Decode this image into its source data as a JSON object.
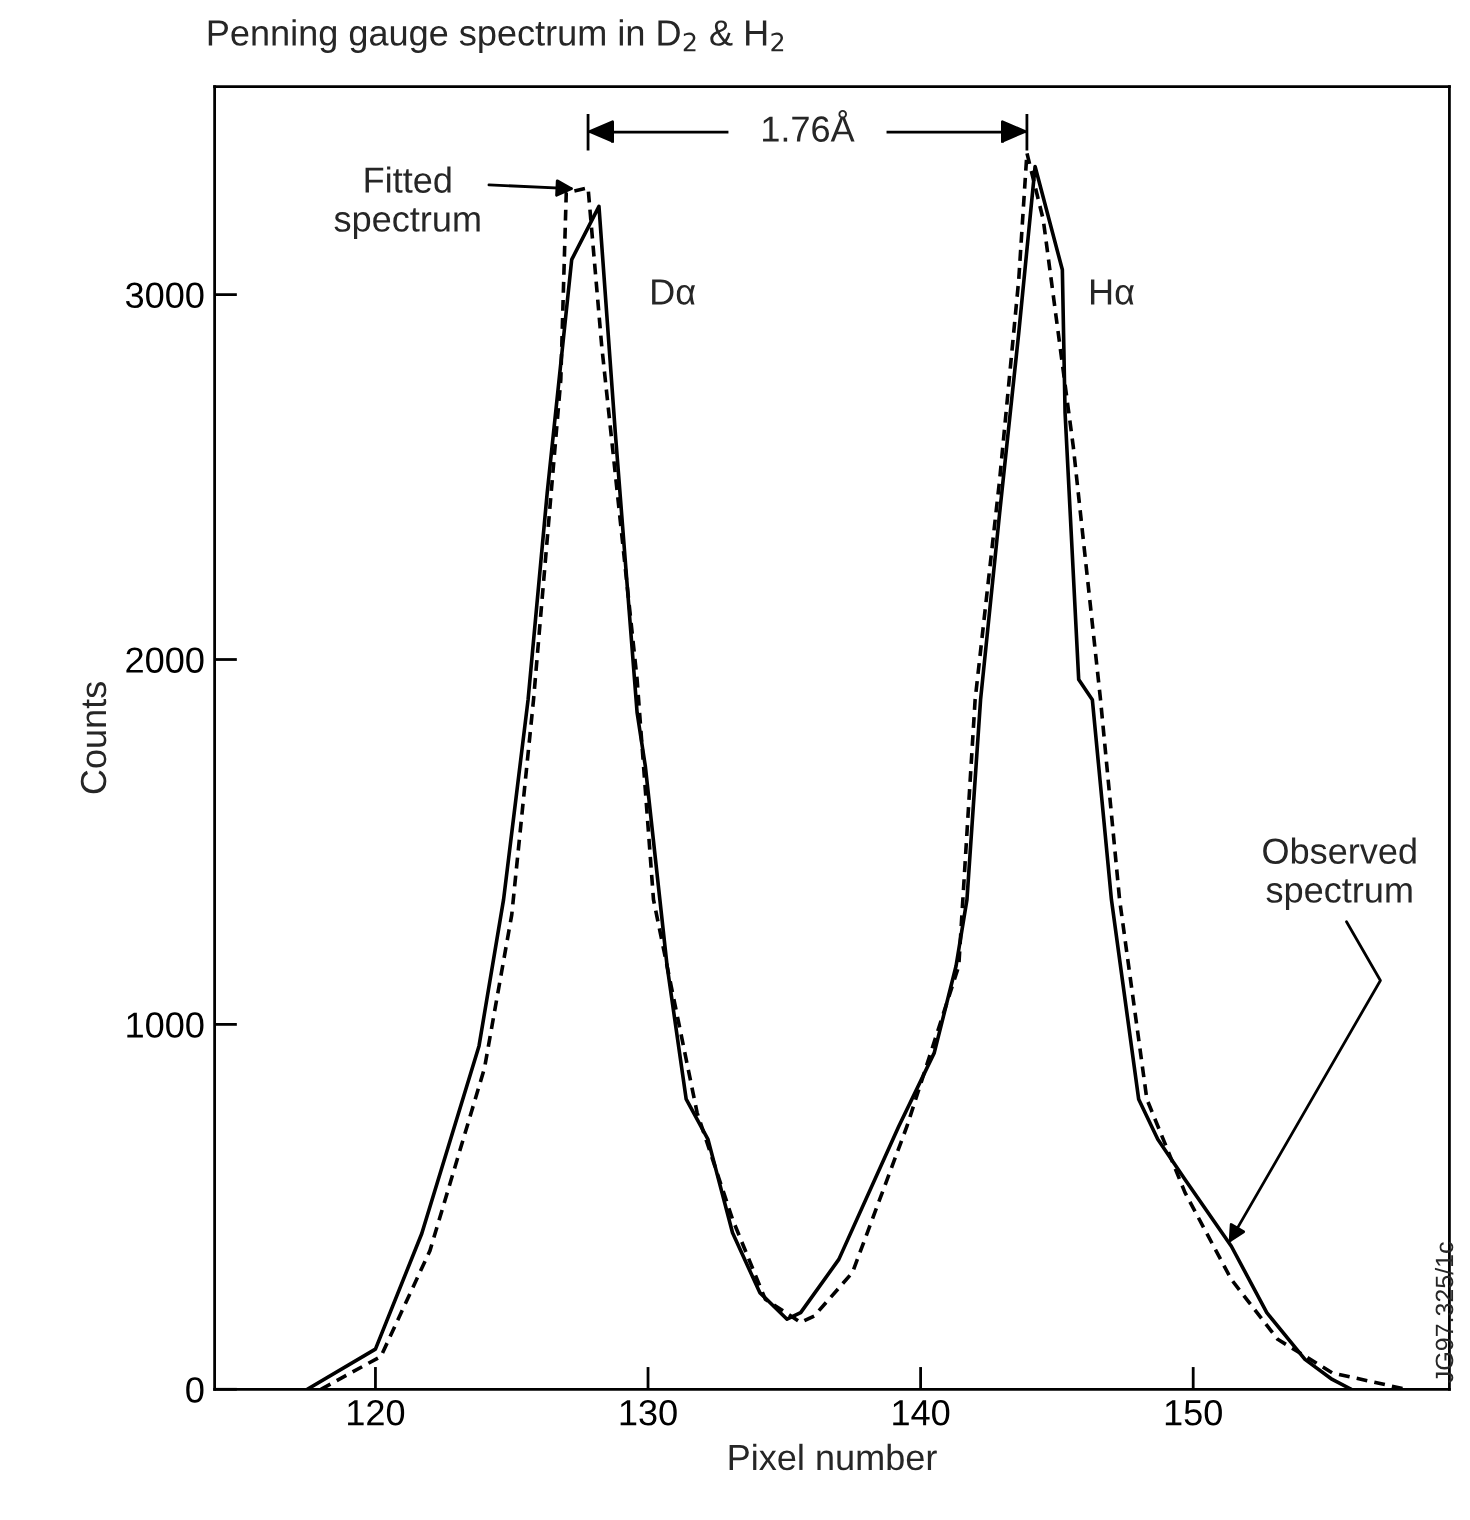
{
  "chart_data": {
    "type": "line",
    "title": "Penning gauge spectrum in D$_{2}$ & H$_{2}$",
    "xlabel": "Pixel number",
    "ylabel": "Counts",
    "xlim": [
      114.1,
      159.4
    ],
    "ylim": [
      0,
      3570
    ],
    "xticks": [
      120,
      130,
      140,
      150
    ],
    "yticks": [
      0,
      1000,
      2000,
      3000
    ],
    "grid": false,
    "series": [
      {
        "color": "#000000",
        "line_style": "solid",
        "x": [
          117.5,
          120.0,
          121.7,
          123.8,
          124.7,
          125.6,
          126.3,
          127.2,
          128.2,
          128.8,
          129.6,
          129.9,
          130.7,
          131.4,
          132.2,
          133.1,
          134.1,
          135.1,
          135.6,
          137.0,
          139.2,
          140.5,
          141.3,
          141.7,
          142.2,
          142.9,
          143.6,
          144.2,
          145.2,
          145.3,
          145.8,
          146.3,
          147.0,
          148.0,
          148.7,
          149.7,
          151.4,
          152.7,
          154.1,
          155.1,
          155.8
        ],
        "values": [
          0,
          110,
          427,
          941,
          1342,
          1890,
          2456,
          3096,
          3242,
          2621,
          1854,
          1708,
          1160,
          795,
          685,
          429,
          265,
          192,
          210,
          356,
          721,
          922,
          1160,
          1342,
          1890,
          2402,
          2895,
          3351,
          3068,
          2676,
          1945,
          1890,
          1342,
          795,
          685,
          575,
          392,
          210,
          82,
          27,
          0
        ]
      },
      {
        "color": "#000000",
        "line_style": "dashed",
        "x": [
          118.0,
          120.2,
          122.0,
          124.0,
          125.0,
          125.8,
          126.8,
          127.0,
          127.8,
          128.3,
          129.6,
          130.2,
          131.8,
          133.1,
          134.3,
          135.6,
          136.1,
          137.5,
          139.5,
          141.4,
          142.0,
          142.9,
          143.6,
          143.9,
          144.5,
          145.6,
          146.6,
          147.3,
          148.3,
          149.7,
          151.4,
          153.1,
          155.1,
          157.8
        ],
        "values": [
          0,
          90,
          380,
          880,
          1300,
          1890,
          2767,
          3279,
          3293,
          2860,
          1945,
          1342,
          758,
          466,
          247,
          183,
          201,
          320,
          721,
          1160,
          1890,
          2493,
          3041,
          3388,
          3205,
          2584,
          1890,
          1342,
          795,
          539,
          301,
          137,
          45,
          0
        ]
      }
    ],
    "annotations": [
      {
        "text": "1.76Å"
      },
      {
        "text": "Fitted\nspectrum",
        "x": 127.3,
        "y": 3290
      },
      {
        "text": "Observed\nspectrum",
        "x": 151.3,
        "y": 400
      },
      "Dα",
      "Hα",
      {
        "text": "JG97.325/1c"
      }
    ]
  }
}
